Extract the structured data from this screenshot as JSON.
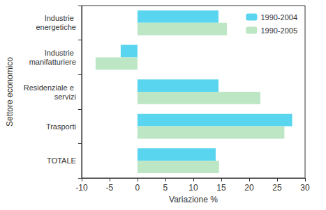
{
  "chart_data": {
    "type": "bar",
    "orientation": "horizontal",
    "x_label": "Variazione %",
    "y_label": "Settore economico",
    "categories": [
      "Industrie energetiche",
      "Industrie manifatturiere",
      "Residenziale e servizi",
      "Trasporti",
      "TOTALE"
    ],
    "series": [
      {
        "name": "1990-2004",
        "color": "#5ad5ef",
        "values": [
          14.5,
          -3.0,
          14.5,
          27.7,
          14.0
        ]
      },
      {
        "name": "1990-2005",
        "color": "#bde6c4",
        "values": [
          16.0,
          -7.5,
          22.0,
          26.3,
          14.6
        ]
      }
    ],
    "xlim": [
      -10,
      30
    ],
    "xticks": [
      -10,
      -5,
      0,
      5,
      10,
      15,
      20,
      25,
      30
    ],
    "grid": false,
    "legend": "upper right"
  }
}
